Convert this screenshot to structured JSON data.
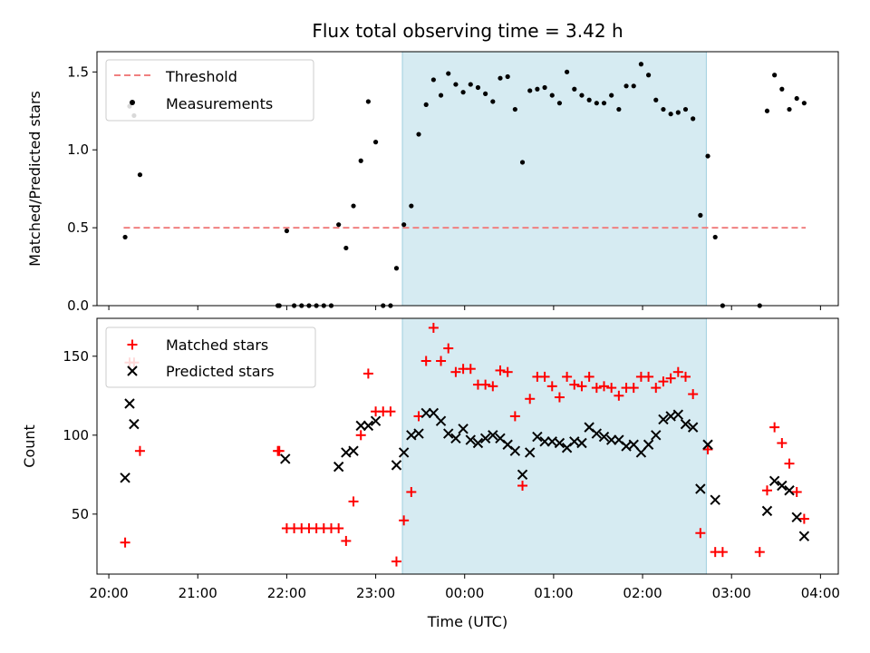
{
  "chart_data": [
    {
      "type": "scatter",
      "title": "Flux total observing time = 3.42 h",
      "xlabel": "",
      "ylabel": "Matched/Predicted stars",
      "ylim": [
        0,
        1.63
      ],
      "yticks": [
        0.0,
        0.5,
        1.0,
        1.5
      ],
      "ytick_labels": [
        "0.0",
        "0.5",
        "1.0",
        "1.5"
      ],
      "grid": false,
      "legend_position": "top-left",
      "observing_window_utc": [
        "23:18",
        "02:43"
      ],
      "threshold": {
        "name": "Threshold",
        "value": 0.5,
        "x_range": [
          "20:10",
          "03:50"
        ],
        "color": "#f08080"
      },
      "series": [
        {
          "name": "Measurements",
          "color": "#000000",
          "x": [
            "20:11",
            "20:14",
            "20:17",
            "20:21",
            "21:54",
            "21:55",
            "22:00",
            "22:05",
            "22:10",
            "22:15",
            "22:20",
            "22:25",
            "22:30",
            "22:35",
            "22:40",
            "22:45",
            "22:50",
            "22:55",
            "23:00",
            "23:05",
            "23:10",
            "23:14",
            "23:19",
            "23:24",
            "23:29",
            "23:34",
            "23:39",
            "23:44",
            "23:49",
            "23:54",
            "23:59",
            "00:04",
            "00:09",
            "00:14",
            "00:19",
            "00:24",
            "00:29",
            "00:34",
            "00:39",
            "00:44",
            "00:49",
            "00:54",
            "00:59",
            "01:04",
            "01:09",
            "01:14",
            "01:19",
            "01:24",
            "01:29",
            "01:34",
            "01:39",
            "01:44",
            "01:49",
            "01:54",
            "01:59",
            "02:04",
            "02:09",
            "02:14",
            "02:19",
            "02:24",
            "02:29",
            "02:34",
            "02:39",
            "02:44",
            "02:49",
            "02:54",
            "03:19",
            "03:24",
            "03:29",
            "03:34",
            "03:39",
            "03:44",
            "03:49"
          ],
          "y": [
            0.44,
            1.28,
            1.22,
            0.84,
            0.0,
            0.0,
            0.48,
            0.0,
            0.0,
            0.0,
            0.0,
            0.0,
            0.0,
            0.52,
            0.37,
            0.64,
            0.93,
            1.31,
            1.05,
            0.0,
            0.0,
            0.24,
            0.52,
            0.64,
            1.1,
            1.29,
            1.45,
            1.35,
            1.49,
            1.42,
            1.37,
            1.42,
            1.4,
            1.36,
            1.31,
            1.46,
            1.47,
            1.26,
            0.92,
            1.38,
            1.39,
            1.4,
            1.35,
            1.3,
            1.5,
            1.39,
            1.35,
            1.32,
            1.3,
            1.3,
            1.35,
            1.26,
            1.41,
            1.41,
            1.55,
            1.48,
            1.32,
            1.26,
            1.23,
            1.24,
            1.26,
            1.2,
            0.58,
            0.96,
            0.44,
            0.0,
            0.0,
            1.25,
            1.48,
            1.39,
            1.26,
            1.33,
            1.3
          ]
        }
      ]
    },
    {
      "type": "scatter",
      "title": "",
      "xlabel": "Time (UTC)",
      "ylabel": "Count",
      "ylim": [
        12,
        174
      ],
      "yticks": [
        50,
        100,
        150
      ],
      "ytick_labels": [
        "50",
        "100",
        "150"
      ],
      "xlim": [
        "19:52",
        "04:12"
      ],
      "xticks": [
        "20:00",
        "21:00",
        "22:00",
        "23:00",
        "00:00",
        "01:00",
        "02:00",
        "03:00",
        "04:00"
      ],
      "xtick_labels": [
        "20:00",
        "21:00",
        "22:00",
        "23:00",
        "00:00",
        "01:00",
        "02:00",
        "03:00",
        "04:00"
      ],
      "grid": false,
      "legend_position": "top-left",
      "observing_window_utc": [
        "23:18",
        "02:43"
      ],
      "series": [
        {
          "name": "Matched stars",
          "marker": "+",
          "color": "#ff0000",
          "x": [
            "20:11",
            "20:14",
            "20:17",
            "20:21",
            "21:54",
            "21:55",
            "22:00",
            "22:05",
            "22:10",
            "22:15",
            "22:20",
            "22:25",
            "22:30",
            "22:35",
            "22:40",
            "22:45",
            "22:50",
            "22:55",
            "23:00",
            "23:05",
            "23:10",
            "23:14",
            "23:19",
            "23:24",
            "23:29",
            "23:34",
            "23:39",
            "23:44",
            "23:49",
            "23:54",
            "23:59",
            "00:04",
            "00:09",
            "00:14",
            "00:19",
            "00:24",
            "00:29",
            "00:34",
            "00:39",
            "00:44",
            "00:49",
            "00:54",
            "00:59",
            "01:04",
            "01:09",
            "01:14",
            "01:19",
            "01:24",
            "01:29",
            "01:34",
            "01:39",
            "01:44",
            "01:49",
            "01:54",
            "01:59",
            "02:04",
            "02:09",
            "02:14",
            "02:19",
            "02:24",
            "02:29",
            "02:34",
            "02:39",
            "02:44",
            "02:49",
            "02:54",
            "03:19",
            "03:24",
            "03:29",
            "03:34",
            "03:39",
            "03:44",
            "03:49"
          ],
          "y": [
            32,
            146,
            146,
            90,
            90,
            90,
            41,
            41,
            41,
            41,
            41,
            41,
            41,
            41,
            33,
            58,
            100,
            139,
            115,
            115,
            115,
            20,
            46,
            64,
            112,
            147,
            168,
            147,
            155,
            140,
            142,
            142,
            132,
            132,
            131,
            141,
            140,
            112,
            68,
            123,
            137,
            137,
            131,
            124,
            137,
            132,
            131,
            137,
            130,
            131,
            130,
            125,
            130,
            130,
            137,
            137,
            130,
            134,
            136,
            140,
            137,
            126,
            38,
            91,
            26,
            26,
            26,
            65,
            105,
            95,
            82,
            64,
            47
          ]
        },
        {
          "name": "Predicted stars",
          "marker": "x",
          "color": "#000000",
          "x": [
            "20:11",
            "20:14",
            "20:17",
            "21:59",
            "22:35",
            "22:40",
            "22:45",
            "22:50",
            "22:55",
            "23:00",
            "23:14",
            "23:19",
            "23:24",
            "23:29",
            "23:34",
            "23:39",
            "23:44",
            "23:49",
            "23:54",
            "23:59",
            "00:04",
            "00:09",
            "00:14",
            "00:19",
            "00:24",
            "00:29",
            "00:34",
            "00:39",
            "00:44",
            "00:49",
            "00:54",
            "00:59",
            "01:04",
            "01:09",
            "01:14",
            "01:19",
            "01:24",
            "01:29",
            "01:34",
            "01:39",
            "01:44",
            "01:49",
            "01:54",
            "01:59",
            "02:04",
            "02:09",
            "02:14",
            "02:19",
            "02:24",
            "02:29",
            "02:34",
            "02:39",
            "02:44",
            "02:49",
            "03:24",
            "03:29",
            "03:34",
            "03:39",
            "03:44",
            "03:49"
          ],
          "y": [
            73,
            120,
            107,
            85,
            80,
            89,
            90,
            106,
            106,
            109,
            81,
            89,
            100,
            101,
            114,
            114,
            109,
            101,
            98,
            104,
            97,
            95,
            98,
            100,
            98,
            94,
            90,
            75,
            89,
            99,
            96,
            96,
            95,
            92,
            96,
            95,
            105,
            101,
            99,
            97,
            97,
            93,
            94,
            89,
            94,
            100,
            110,
            112,
            113,
            107,
            105,
            66,
            94,
            59,
            52,
            71,
            68,
            65,
            48,
            36
          ]
        }
      ]
    }
  ]
}
